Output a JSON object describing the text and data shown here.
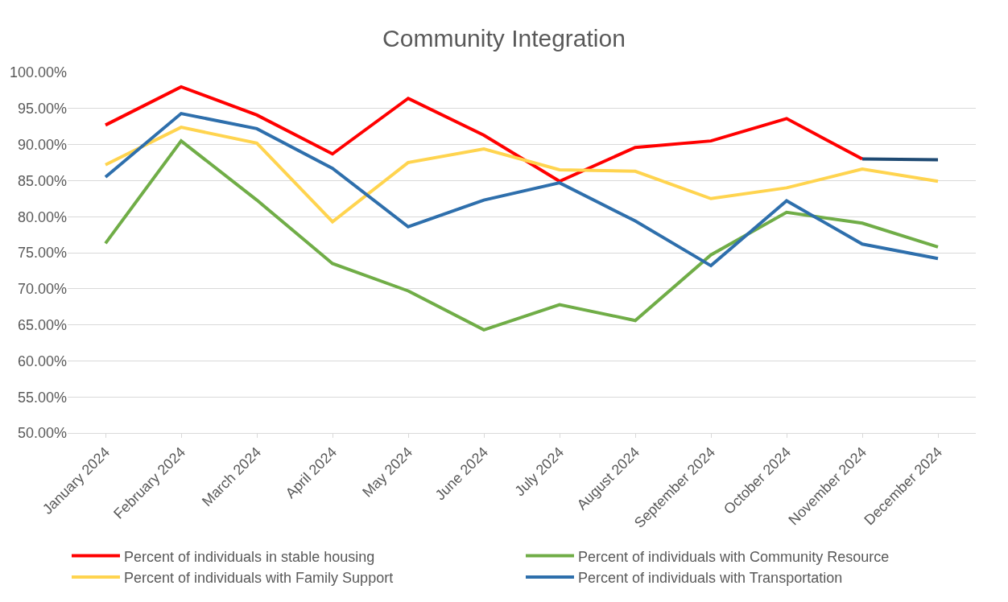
{
  "chart_data": {
    "type": "line",
    "title": "Community Integration",
    "categories": [
      "January 2024",
      "February 2024",
      "March 2024",
      "April 2024",
      "May 2024",
      "June 2024",
      "July 2024",
      "August 2024",
      "September 2024",
      "October 2024",
      "November 2024",
      "December 2024"
    ],
    "series": [
      {
        "name": "Percent of individuals in stable housing",
        "color": "#ff0000",
        "values": [
          92.7,
          98.0,
          94.1,
          88.7,
          96.4,
          91.3,
          84.9,
          89.6,
          90.5,
          93.6,
          88.0,
          null
        ]
      },
      {
        "name": "Percent of individuals with Community Resource",
        "color": "#70ad47",
        "values": [
          76.3,
          90.5,
          82.3,
          73.5,
          69.7,
          64.3,
          67.8,
          65.6,
          74.7,
          80.6,
          79.1,
          75.8
        ]
      },
      {
        "name": "Percent of individuals with Family Support",
        "color": "#ffd44f",
        "values": [
          87.2,
          92.4,
          90.2,
          79.3,
          87.5,
          89.4,
          86.5,
          86.3,
          82.5,
          84.0,
          86.6,
          84.9
        ]
      },
      {
        "name": "Percent of individuals with Transportation",
        "color": "#2e6fac",
        "values": [
          85.5,
          94.3,
          92.2,
          86.7,
          78.6,
          82.3,
          84.7,
          79.4,
          73.2,
          82.2,
          76.2,
          74.2
        ]
      },
      {
        "color": "#1f4a73",
        "values": [
          null,
          null,
          null,
          null,
          null,
          null,
          null,
          null,
          null,
          null,
          88.0,
          87.9
        ]
      }
    ],
    "ylim": [
      50,
      100
    ],
    "yticks": [
      {
        "value": 50,
        "label": "50.00%"
      },
      {
        "value": 55,
        "label": "55.00%"
      },
      {
        "value": 60,
        "label": "60.00%"
      },
      {
        "value": 65,
        "label": "65.00%"
      },
      {
        "value": 70,
        "label": "70.00%"
      },
      {
        "value": 75,
        "label": "75.00%"
      },
      {
        "value": 80,
        "label": "80.00%"
      },
      {
        "value": 85,
        "label": "85.00%"
      },
      {
        "value": 90,
        "label": "90.00%"
      },
      {
        "value": 95,
        "label": "95.00%"
      },
      {
        "value": 100,
        "label": "100.00%"
      }
    ],
    "grid": "y",
    "legend": "bottom",
    "marker": "none",
    "line_style": "solid"
  }
}
